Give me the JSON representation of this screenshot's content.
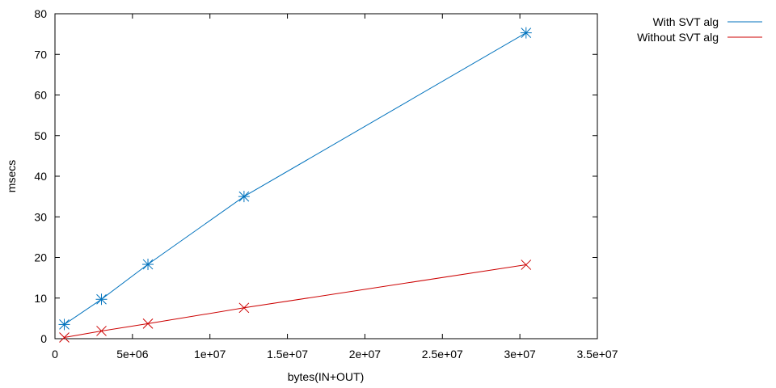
{
  "chart_data": {
    "type": "line",
    "title": "",
    "xlabel": "bytes(IN+OUT)",
    "ylabel": "msecs",
    "xlim": [
      0,
      35000000
    ],
    "ylim": [
      0,
      80
    ],
    "x_ticks": [
      0,
      5000000,
      10000000,
      15000000,
      20000000,
      25000000,
      30000000,
      35000000
    ],
    "x_tick_labels": [
      "0",
      "5e+06",
      "1e+07",
      "1.5e+07",
      "2e+07",
      "2.5e+07",
      "3e+07",
      "3.5e+07"
    ],
    "y_ticks": [
      0,
      10,
      20,
      30,
      40,
      50,
      60,
      70,
      80
    ],
    "y_tick_labels": [
      "0",
      "10",
      "20",
      "30",
      "40",
      "50",
      "60",
      "70",
      "80"
    ],
    "grid": false,
    "legend_position": "outside-top-right",
    "series": [
      {
        "name": "With SVT alg",
        "color": "#0072bd",
        "marker": "asterisk",
        "x": [
          600000,
          3000000,
          6000000,
          12200000,
          30400000
        ],
        "y": [
          3.5,
          9.7,
          18.3,
          35.0,
          75.3
        ]
      },
      {
        "name": "Without SVT alg",
        "color": "#cc0000",
        "marker": "x",
        "x": [
          600000,
          3000000,
          6000000,
          12200000,
          30400000
        ],
        "y": [
          0.3,
          1.9,
          3.7,
          7.6,
          18.2
        ]
      }
    ]
  }
}
